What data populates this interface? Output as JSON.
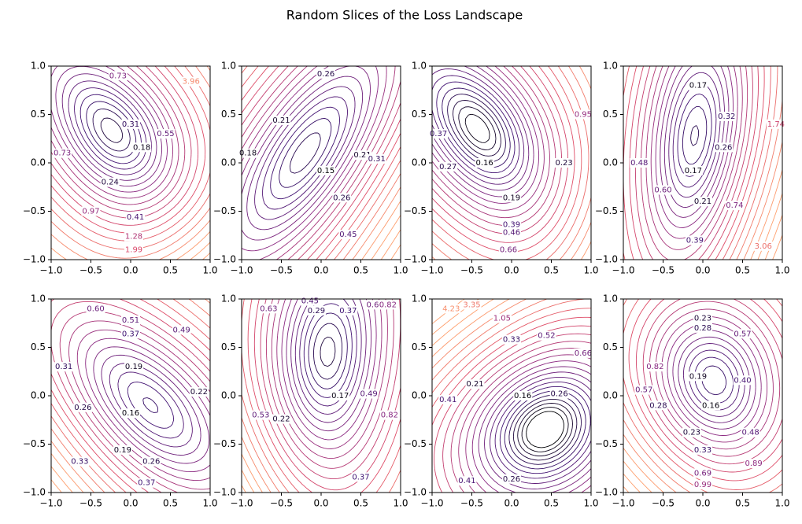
{
  "title": "Random Slices of the Loss Landscape",
  "chart_data": [
    {
      "type": "contour",
      "xlim": [
        -1,
        1
      ],
      "ylim": [
        -1,
        1
      ],
      "xticks": [
        {
          "value": -1,
          "label": "−1.0"
        },
        {
          "value": -0.5,
          "label": "−0.5"
        },
        {
          "value": 0,
          "label": "0.0"
        },
        0.5,
        {
          "value": 1,
          "label": "1.0"
        }
      ],
      "yticks": [
        {
          "value": -1,
          "label": "−1.0"
        },
        {
          "value": -0.5,
          "label": "−0.5"
        },
        {
          "value": 0,
          "label": "0.0"
        },
        0.5,
        {
          "value": 1,
          "label": "1.0"
        }
      ],
      "contour_labels": [
        0.73,
        0.31,
        0.55,
        0.18,
        0.24,
        0.73,
        0.97,
        0.41,
        1.28,
        1.99,
        3.96
      ]
    },
    {
      "type": "contour",
      "xlim": [
        -1,
        1
      ],
      "ylim": [
        -1,
        1
      ],
      "xticks": [
        {
          "value": -1,
          "label": "−1.0"
        },
        {
          "value": -0.5,
          "label": "−0.5"
        },
        {
          "value": 0,
          "label": "0.0"
        },
        0.5,
        {
          "value": 1,
          "label": "1.0"
        }
      ],
      "yticks": [
        {
          "value": -1,
          "label": "−1.0"
        },
        {
          "value": -0.5,
          "label": "−0.5"
        },
        {
          "value": 0,
          "label": "0.0"
        },
        0.5,
        {
          "value": 1,
          "label": "1.0"
        }
      ],
      "contour_labels": [
        0.26,
        0.21,
        0.18,
        0.15,
        0.21,
        0.26,
        0.45,
        0.31
      ]
    },
    {
      "type": "contour",
      "xlim": [
        -1,
        1
      ],
      "ylim": [
        -1,
        1
      ],
      "xticks": [
        {
          "value": -1,
          "label": "−1.0"
        },
        {
          "value": -0.5,
          "label": "−0.5"
        },
        {
          "value": 0,
          "label": "0.0"
        },
        0.5,
        {
          "value": 1,
          "label": "1.0"
        }
      ],
      "yticks": [
        {
          "value": -1,
          "label": "−1.0"
        },
        {
          "value": -0.5,
          "label": "−0.5"
        },
        {
          "value": 0,
          "label": "0.0"
        },
        0.5,
        {
          "value": 1,
          "label": "1.0"
        }
      ],
      "contour_labels": [
        0.16,
        0.19,
        0.23,
        0.27,
        0.37,
        0.39,
        0.46,
        0.66,
        0.95
      ]
    },
    {
      "type": "contour",
      "xlim": [
        -1,
        1
      ],
      "ylim": [
        -1,
        1
      ],
      "xticks": [
        {
          "value": -1,
          "label": "−1.0"
        },
        {
          "value": -0.5,
          "label": "−0.5"
        },
        {
          "value": 0,
          "label": "0.0"
        },
        0.5,
        {
          "value": 1,
          "label": "1.0"
        }
      ],
      "yticks": [
        {
          "value": -1,
          "label": "−1.0"
        },
        {
          "value": -0.5,
          "label": "−0.5"
        },
        {
          "value": 0,
          "label": "0.0"
        },
        0.5,
        {
          "value": 1,
          "label": "1.0"
        }
      ],
      "contour_labels": [
        0.17,
        0.32,
        0.26,
        0.17,
        0.21,
        0.48,
        {
          "value": 0.6,
          "label": "0.60"
        },
        0.39,
        0.74,
        1.74,
        3.06
      ]
    },
    {
      "type": "contour",
      "xlim": [
        -1,
        1
      ],
      "ylim": [
        -1,
        1
      ],
      "xticks": [
        {
          "value": -1,
          "label": "−1.0"
        },
        {
          "value": -0.5,
          "label": "−0.5"
        },
        {
          "value": 0,
          "label": "0.0"
        },
        0.5,
        {
          "value": 1,
          "label": "1.0"
        }
      ],
      "yticks": [
        {
          "value": -1,
          "label": "−1.0"
        },
        {
          "value": -0.5,
          "label": "−0.5"
        },
        {
          "value": 0,
          "label": "0.0"
        },
        0.5,
        {
          "value": 1,
          "label": "1.0"
        }
      ],
      "contour_labels": [
        {
          "value": 0.6,
          "label": "0.60"
        },
        0.51,
        0.37,
        0.19,
        0.16,
        0.26,
        0.31,
        0.22,
        0.19,
        0.26,
        0.37,
        0.33,
        0.49
      ]
    },
    {
      "type": "contour",
      "xlim": [
        -1,
        1
      ],
      "ylim": [
        -1,
        1
      ],
      "xticks": [
        {
          "value": -1,
          "label": "−1.0"
        },
        {
          "value": -0.5,
          "label": "−0.5"
        },
        {
          "value": 0,
          "label": "0.0"
        },
        0.5,
        {
          "value": 1,
          "label": "1.0"
        }
      ],
      "yticks": [
        {
          "value": -1,
          "label": "−1.0"
        },
        {
          "value": -0.5,
          "label": "−0.5"
        },
        {
          "value": 0,
          "label": "0.0"
        },
        0.5,
        {
          "value": 1,
          "label": "1.0"
        }
      ],
      "contour_labels": [
        0.63,
        0.45,
        0.29,
        0.37,
        0.63,
        0.82,
        0.17,
        0.22,
        0.49,
        0.82,
        0.37,
        0.53
      ]
    },
    {
      "type": "contour",
      "xlim": [
        -1,
        1
      ],
      "ylim": [
        -1,
        1
      ],
      "xticks": [
        {
          "value": -1,
          "label": "−1.0"
        },
        {
          "value": -0.5,
          "label": "−0.5"
        },
        {
          "value": 0,
          "label": "0.0"
        },
        0.5,
        {
          "value": 1,
          "label": "1.0"
        }
      ],
      "yticks": [
        {
          "value": -1,
          "label": "−1.0"
        },
        {
          "value": -0.5,
          "label": "−0.5"
        },
        {
          "value": 0,
          "label": "0.0"
        },
        0.5,
        {
          "value": 1,
          "label": "1.0"
        }
      ],
      "contour_labels": [
        3.35,
        1.05,
        0.33,
        0.52,
        0.21,
        0.16,
        0.26,
        0.41,
        0.41,
        0.26,
        0.66,
        4.23
      ]
    },
    {
      "type": "contour",
      "xlim": [
        -1,
        1
      ],
      "ylim": [
        -1,
        1
      ],
      "xticks": [
        {
          "value": -1,
          "label": "−1.0"
        },
        {
          "value": -0.5,
          "label": "−0.5"
        },
        {
          "value": 0,
          "label": "0.0"
        },
        0.5,
        {
          "value": 1,
          "label": "1.0"
        }
      ],
      "yticks": [
        {
          "value": -1,
          "label": "−1.0"
        },
        {
          "value": -0.5,
          "label": "−0.5"
        },
        {
          "value": 0,
          "label": "0.0"
        },
        0.5,
        {
          "value": 1,
          "label": "1.0"
        }
      ],
      "contour_labels": [
        0.23,
        0.28,
        0.57,
        0.19,
        0.16,
        {
          "value": 0.4,
          "label": "0.40"
        },
        0.28,
        0.23,
        0.33,
        0.48,
        0.69,
        0.99,
        0.82,
        0.57,
        0.89
      ]
    }
  ]
}
